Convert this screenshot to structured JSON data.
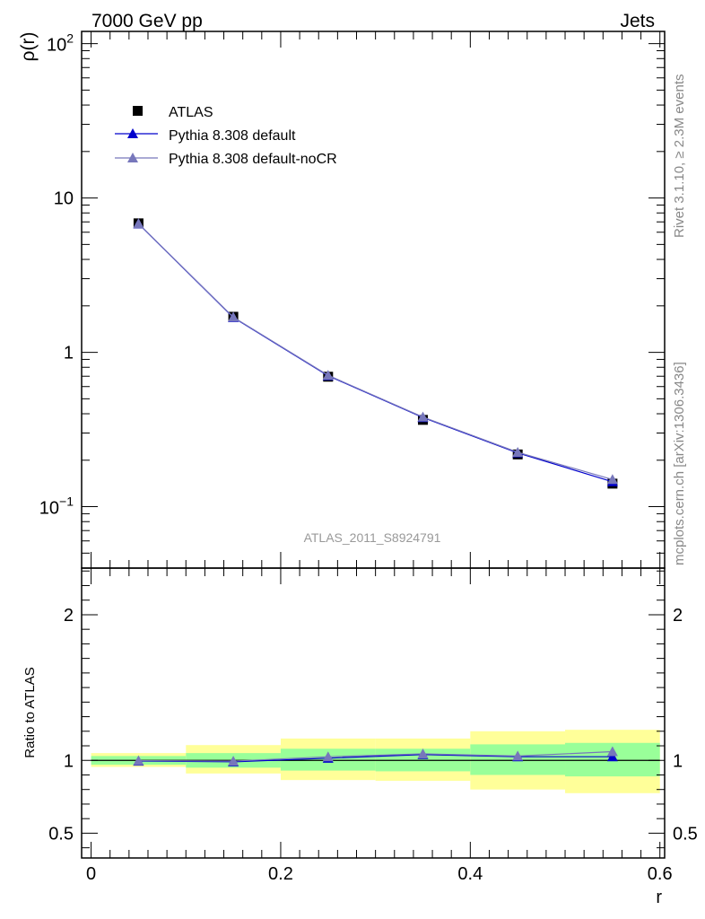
{
  "header": {
    "left_label": "7000 GeV pp",
    "right_label": "Jets"
  },
  "side_labels": {
    "rivet": "Rivet 3.1.10, ≥ 2.3M events",
    "mcplots": "mcplots.cern.ch [arXiv:1306.3436]"
  },
  "analysis_label": "ATLAS_2011_S8924791",
  "colors": {
    "data": "#000000",
    "pythia_default": "#0000cc",
    "pythia_nocr": "#7777bb",
    "band_inner": "#99ff99",
    "band_outer": "#ffff99"
  },
  "chart_data": [
    {
      "type": "line",
      "title": "",
      "xlabel": "r",
      "ylabel": "ρ(r)",
      "yscale": "log",
      "xlim": [
        -0.01,
        0.605
      ],
      "ylim": [
        0.04,
        120
      ],
      "ytick_labels": [
        {
          "value": 100,
          "base": "10",
          "exp": "2"
        },
        {
          "value": 10,
          "base": "10",
          "exp": ""
        },
        {
          "value": 1,
          "base": "1",
          "exp": ""
        },
        {
          "value": 0.1,
          "base": "10",
          "exp": "−1"
        }
      ],
      "legend": {
        "position": "top-left"
      },
      "x": [
        0.05,
        0.15,
        0.25,
        0.35,
        0.45,
        0.55
      ],
      "series": [
        {
          "name": "ATLAS",
          "marker": "square",
          "values": [
            6.85,
            1.7,
            0.695,
            0.365,
            0.218,
            0.141
          ]
        },
        {
          "name": "Pythia 8.308 default",
          "marker": "triangle",
          "values": [
            6.8,
            1.68,
            0.705,
            0.378,
            0.223,
            0.145
          ]
        },
        {
          "name": "Pythia 8.308 default-noCR",
          "marker": "triangle",
          "values": [
            6.82,
            1.69,
            0.71,
            0.381,
            0.225,
            0.15
          ]
        }
      ]
    },
    {
      "type": "line",
      "title": "",
      "xlabel": "r",
      "ylabel": "Ratio to ATLAS",
      "xlim": [
        -0.01,
        0.605
      ],
      "ylim": [
        0.33,
        2.32
      ],
      "xticks": [
        "0",
        "0.2",
        "0.4",
        "0.6"
      ],
      "yticks": [
        "0.5",
        "1",
        "2"
      ],
      "bin_edges": [
        0.0,
        0.1,
        0.2,
        0.3,
        0.4,
        0.5,
        0.6
      ],
      "band_inner": {
        "low": [
          0.97,
          0.95,
          0.93,
          0.925,
          0.9,
          0.89
        ],
        "high": [
          1.03,
          1.05,
          1.08,
          1.08,
          1.11,
          1.12
        ]
      },
      "band_outer": {
        "low": [
          0.955,
          0.91,
          0.865,
          0.86,
          0.8,
          0.775
        ],
        "high": [
          1.05,
          1.105,
          1.15,
          1.15,
          1.2,
          1.21
        ]
      },
      "x": [
        0.05,
        0.15,
        0.25,
        0.35,
        0.45,
        0.55
      ],
      "series": [
        {
          "name": "Pythia 8.308 default",
          "values": [
            0.995,
            0.99,
            1.015,
            1.04,
            1.025,
            1.025
          ]
        },
        {
          "name": "Pythia 8.308 default-noCR",
          "values": [
            0.998,
            0.995,
            1.025,
            1.045,
            1.03,
            1.06
          ]
        }
      ]
    }
  ]
}
